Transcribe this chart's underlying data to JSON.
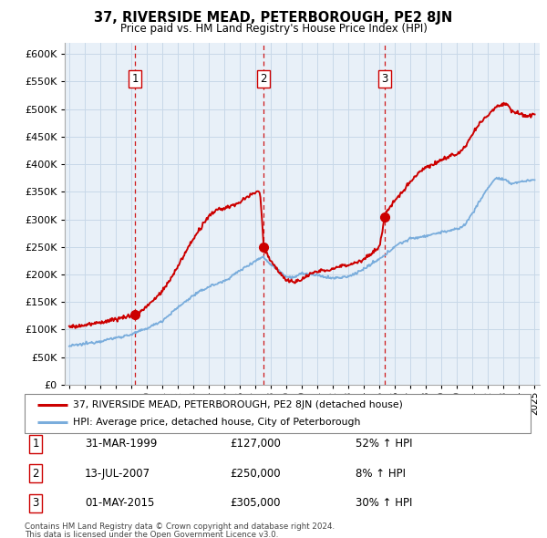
{
  "title": "37, RIVERSIDE MEAD, PETERBOROUGH, PE2 8JN",
  "subtitle": "Price paid vs. HM Land Registry's House Price Index (HPI)",
  "legend_line1": "37, RIVERSIDE MEAD, PETERBOROUGH, PE2 8JN (detached house)",
  "legend_line2": "HPI: Average price, detached house, City of Peterborough",
  "footer1": "Contains HM Land Registry data © Crown copyright and database right 2024.",
  "footer2": "This data is licensed under the Open Government Licence v3.0.",
  "table": [
    {
      "num": "1",
      "date": "31-MAR-1999",
      "price": "£127,000",
      "hpi": "52% ↑ HPI"
    },
    {
      "num": "2",
      "date": "13-JUL-2007",
      "price": "£250,000",
      "hpi": "8% ↑ HPI"
    },
    {
      "num": "3",
      "date": "01-MAY-2015",
      "price": "£305,000",
      "hpi": "30% ↑ HPI"
    }
  ],
  "sale_prices": [
    127000,
    250000,
    305000
  ],
  "red_line_color": "#cc0000",
  "blue_line_color": "#7aaddc",
  "dashed_vline_color": "#cc0000",
  "grid_color": "#c8d8e8",
  "chart_bg_color": "#e8f0f8",
  "bg_color": "#ffffff",
  "ylim": [
    0,
    620000
  ],
  "yticks": [
    0,
    50000,
    100000,
    150000,
    200000,
    250000,
    300000,
    350000,
    400000,
    450000,
    500000,
    550000,
    600000
  ],
  "xlim_start": 1994.7,
  "xlim_end": 2025.3,
  "sale_year_floats": [
    1999.247,
    2007.536,
    2015.33
  ]
}
